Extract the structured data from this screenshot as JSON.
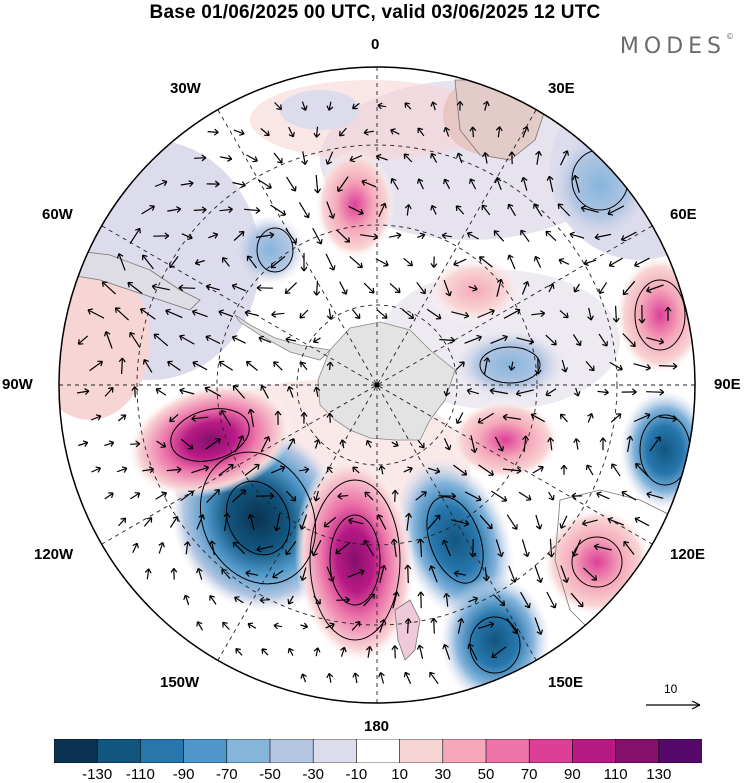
{
  "title": "Base 01/06/2025 00 UTC, valid 03/06/2025 12 UTC",
  "brand": {
    "text": "MODES",
    "mark": "©"
  },
  "map": {
    "projection": "south polar stereographic",
    "center": "South Pole",
    "longitude_labels": [
      "0",
      "30E",
      "60E",
      "90E",
      "120E",
      "150E",
      "180",
      "150W",
      "120W",
      "90W",
      "60W",
      "30W"
    ],
    "field": "shaded anomaly with wind vectors",
    "features": [
      {
        "name": "negative anomaly",
        "near": "120W-150W",
        "value": -130
      },
      {
        "name": "positive anomaly",
        "near": "160W-170W",
        "value": 110
      },
      {
        "name": "negative anomaly",
        "near": "150E-170E",
        "value": -110
      },
      {
        "name": "positive anomaly",
        "near": "120E",
        "value": 90
      },
      {
        "name": "positive anomaly",
        "near": "100W",
        "value": 90
      },
      {
        "name": "negative anomaly",
        "near": "90E-100E",
        "value": -50
      },
      {
        "name": "positive anomaly",
        "near": "75E",
        "value": 50
      },
      {
        "name": "positive anomaly",
        "near": "10W",
        "value": 50
      }
    ]
  },
  "vector_scale": {
    "label": "10"
  },
  "colorbar": {
    "ticks": [
      "-130",
      "-110",
      "-90",
      "-70",
      "-50",
      "-30",
      "-10",
      "10",
      "30",
      "50",
      "70",
      "90",
      "110",
      "130"
    ],
    "colors": [
      "#0a3352",
      "#12567f",
      "#2777ad",
      "#4f97c8",
      "#86b5dc",
      "#b3c6e2",
      "#dcdcec",
      "#ffffff",
      "#f8d5d5",
      "#f5a8ba",
      "#ec74a9",
      "#dd3f97",
      "#b81a85",
      "#84106d",
      "#55096b"
    ]
  }
}
